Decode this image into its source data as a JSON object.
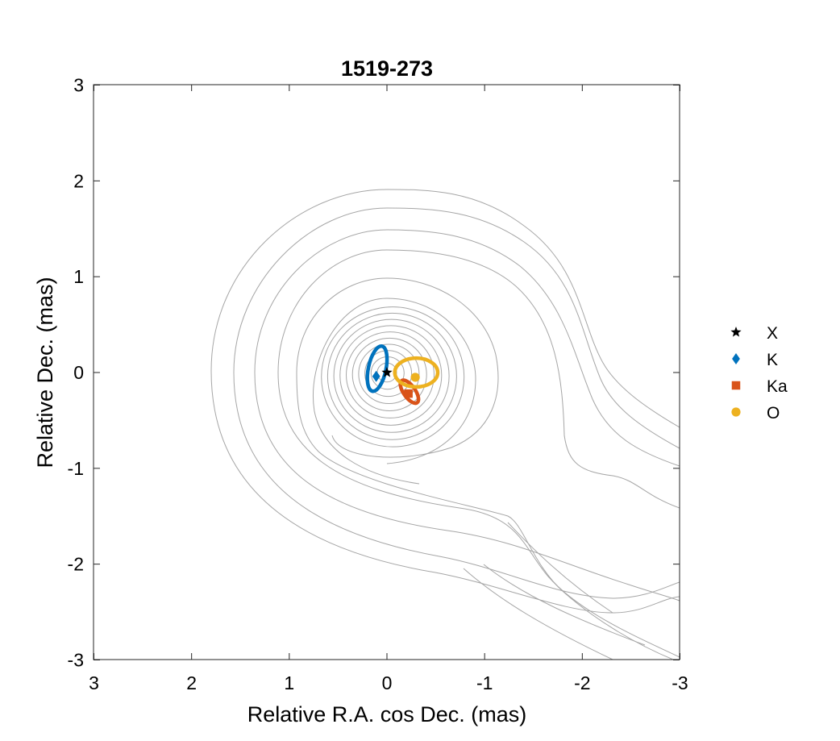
{
  "chart_data": {
    "type": "scatter",
    "title": "1519-273",
    "xlabel": "Relative R.A. cos Dec. (mas)",
    "ylabel": "Relative Dec. (mas)",
    "xlim": [
      3,
      -3
    ],
    "ylim": [
      -3,
      3
    ],
    "x_reversed": true,
    "xticks": [
      3,
      2,
      1,
      0,
      -1,
      -2,
      -3
    ],
    "xtick_labels": [
      "3",
      "2",
      "1",
      "0",
      "-1",
      "-2",
      "-3"
    ],
    "yticks": [
      3,
      2,
      1,
      0,
      -1,
      -2,
      -3
    ],
    "ytick_labels": [
      "3",
      "2",
      "1",
      "0",
      "-1",
      "-2",
      "-3"
    ],
    "grid": false,
    "legend_position": "outside-right",
    "contours": {
      "color": "#a6a6a6",
      "levels": 16,
      "note_free": true
    },
    "series": [
      {
        "name": "X",
        "marker": "star",
        "color": "#000000",
        "x": 0.0,
        "y": 0.0
      },
      {
        "name": "K",
        "marker": "diamond",
        "color": "#0072bd",
        "x": 0.11,
        "y": -0.04,
        "ellipse": {
          "x": 0.1,
          "y": 0.04,
          "rx": 0.09,
          "ry": 0.24,
          "angle": 12
        }
      },
      {
        "name": "Ka",
        "marker": "square",
        "color": "#d95319",
        "x": -0.22,
        "y": -0.22,
        "ellipse": {
          "x": -0.23,
          "y": -0.2,
          "rx": 0.06,
          "ry": 0.14,
          "angle": -35
        }
      },
      {
        "name": "O",
        "marker": "circle",
        "color": "#edb120",
        "x": -0.29,
        "y": -0.05,
        "ellipse": {
          "x": -0.3,
          "y": 0.0,
          "rx": 0.22,
          "ry": 0.15,
          "angle": 0
        }
      }
    ]
  }
}
